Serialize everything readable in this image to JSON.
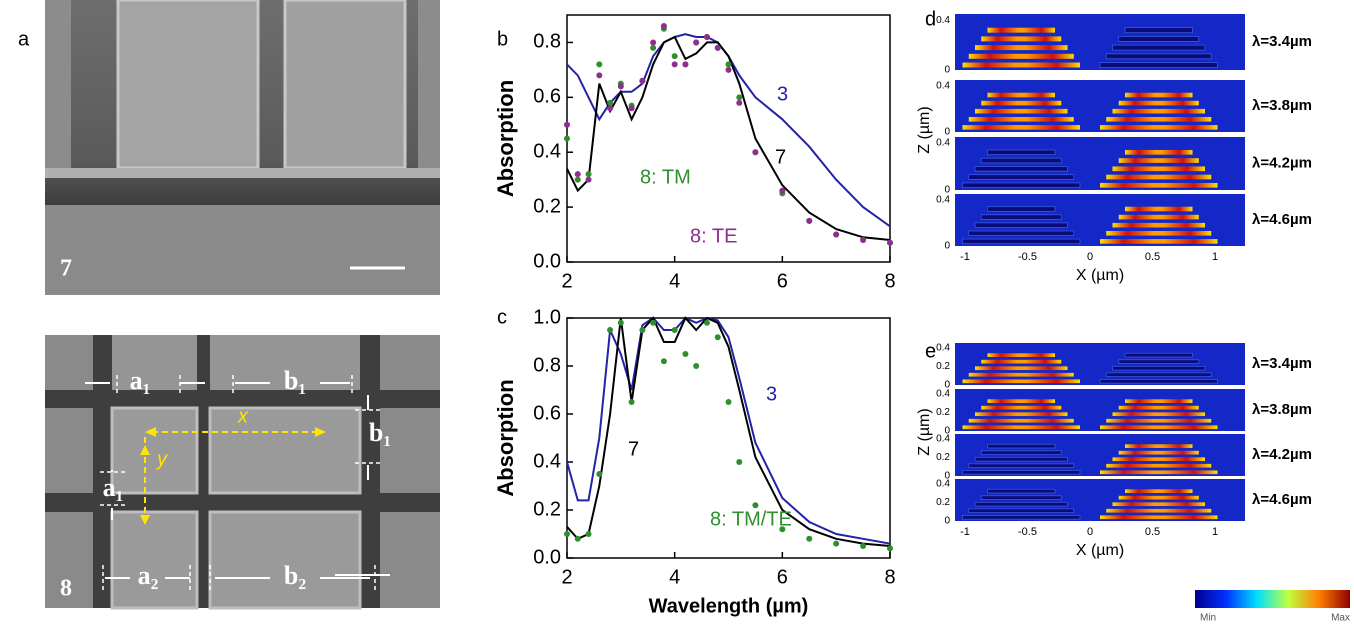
{
  "panel_a": {
    "label": "a",
    "images": [
      {
        "label": "7"
      },
      {
        "label": "8",
        "annotations": [
          "a₁",
          "b₁",
          "x",
          "b₁",
          "y",
          "a₁",
          "a₂",
          "b₂"
        ]
      }
    ]
  },
  "chart_data": [
    {
      "type": "line",
      "label": "b",
      "ylabel": "Absorption",
      "xlim": [
        2,
        8
      ],
      "xticks": [
        2,
        4,
        6,
        8
      ],
      "ylim": [
        0,
        0.9
      ],
      "yticks": [
        {
          "value": 0,
          "label": "0.0"
        },
        0.2,
        0.4,
        0.6,
        0.8
      ],
      "x": [
        2,
        2.2,
        2.4,
        2.6,
        2.8,
        3,
        3.2,
        3.4,
        3.6,
        3.8,
        4,
        4.2,
        4.4,
        4.6,
        4.8,
        5,
        5.2,
        5.5,
        6,
        6.5,
        7,
        7.5,
        8
      ],
      "series": [
        {
          "name": "3",
          "color": "#2323a8",
          "style": "line",
          "values": [
            0.72,
            0.68,
            0.6,
            0.52,
            0.58,
            0.62,
            0.62,
            0.65,
            0.75,
            0.8,
            0.82,
            0.83,
            0.82,
            0.82,
            0.8,
            0.75,
            0.68,
            0.6,
            0.52,
            0.42,
            0.3,
            0.2,
            0.13
          ]
        },
        {
          "name": "7",
          "color": "#000000",
          "style": "line",
          "values": [
            0.34,
            0.26,
            0.3,
            0.65,
            0.55,
            0.62,
            0.52,
            0.6,
            0.72,
            0.8,
            0.82,
            0.74,
            0.76,
            0.8,
            0.8,
            0.75,
            0.65,
            0.45,
            0.28,
            0.18,
            0.12,
            0.09,
            0.08
          ]
        },
        {
          "name": "8: TM",
          "color": "#2f8f2f",
          "style": "dots",
          "values": [
            0.45,
            0.3,
            0.32,
            0.72,
            0.58,
            0.65,
            0.57,
            0.66,
            0.78,
            0.85,
            0.75,
            0.72,
            0.8,
            0.82,
            0.78,
            0.72,
            0.6,
            0.4,
            0.25,
            0.15,
            0.1,
            0.08,
            0.07
          ]
        },
        {
          "name": "8: TE",
          "color": "#8e2e8e",
          "style": "dots",
          "values": [
            0.5,
            0.32,
            0.3,
            0.68,
            0.56,
            0.64,
            0.56,
            0.66,
            0.8,
            0.86,
            0.72,
            0.72,
            0.8,
            0.82,
            0.78,
            0.7,
            0.58,
            0.4,
            0.26,
            0.15,
            0.1,
            0.08,
            0.07
          ]
        }
      ]
    },
    {
      "type": "line",
      "label": "c",
      "ylabel": "Absorption",
      "xlabel": "Wavelength (µm)",
      "xlim": [
        2,
        8
      ],
      "xticks": [
        2,
        4,
        6,
        8
      ],
      "ylim": [
        0,
        1
      ],
      "yticks": [
        {
          "value": 0,
          "label": "0.0"
        },
        0.2,
        0.4,
        0.6,
        0.8,
        {
          "value": 1,
          "label": "1.0"
        }
      ],
      "x": [
        2,
        2.2,
        2.4,
        2.6,
        2.8,
        3,
        3.2,
        3.4,
        3.6,
        3.8,
        4,
        4.2,
        4.4,
        4.6,
        4.8,
        5,
        5.2,
        5.5,
        6,
        6.5,
        7,
        7.5,
        8
      ],
      "series": [
        {
          "name": "3",
          "color": "#2323a8",
          "style": "line",
          "values": [
            0.4,
            0.24,
            0.24,
            0.5,
            0.95,
            0.85,
            0.7,
            0.97,
            1.0,
            0.95,
            0.95,
            1.0,
            0.98,
            1.0,
            0.99,
            0.92,
            0.75,
            0.48,
            0.25,
            0.15,
            0.1,
            0.08,
            0.06
          ]
        },
        {
          "name": "7",
          "color": "#000000",
          "style": "line",
          "values": [
            0.13,
            0.08,
            0.1,
            0.3,
            0.6,
            1.0,
            0.65,
            0.95,
            1.0,
            0.9,
            0.9,
            1.0,
            0.95,
            1.0,
            0.98,
            0.88,
            0.7,
            0.42,
            0.2,
            0.12,
            0.08,
            0.06,
            0.05
          ]
        },
        {
          "name": "8: TM/TE",
          "color": "#2f8f2f",
          "style": "dots",
          "values": [
            0.1,
            0.08,
            0.1,
            0.35,
            0.95,
            0.98,
            0.65,
            0.95,
            0.98,
            0.82,
            0.95,
            0.85,
            0.8,
            0.98,
            0.92,
            0.65,
            0.4,
            0.22,
            0.12,
            0.08,
            0.06,
            0.05,
            0.04
          ]
        }
      ]
    }
  ],
  "panel_d": {
    "label": "d",
    "ylabel": "Z (µm)",
    "xlabel": "X (µm)",
    "xticks": [
      -1,
      -0.5,
      0,
      0.5,
      1
    ],
    "zticks": [
      0,
      0.4
    ],
    "rows": [
      "λ=3.4µm",
      "λ=3.8µm",
      "λ=4.2µm",
      "λ=4.6µm"
    ]
  },
  "panel_e": {
    "label": "e",
    "ylabel": "Z (µm)",
    "xlabel": "X (µm)",
    "xticks": [
      -1,
      -0.5,
      0,
      0.5,
      1
    ],
    "zticks": [
      0,
      0.2,
      0.4
    ],
    "rows": [
      "λ=3.4µm",
      "λ=3.8µm",
      "λ=4.2µm",
      "λ=4.6µm"
    ],
    "colorbar": [
      "Min",
      "Max"
    ]
  }
}
